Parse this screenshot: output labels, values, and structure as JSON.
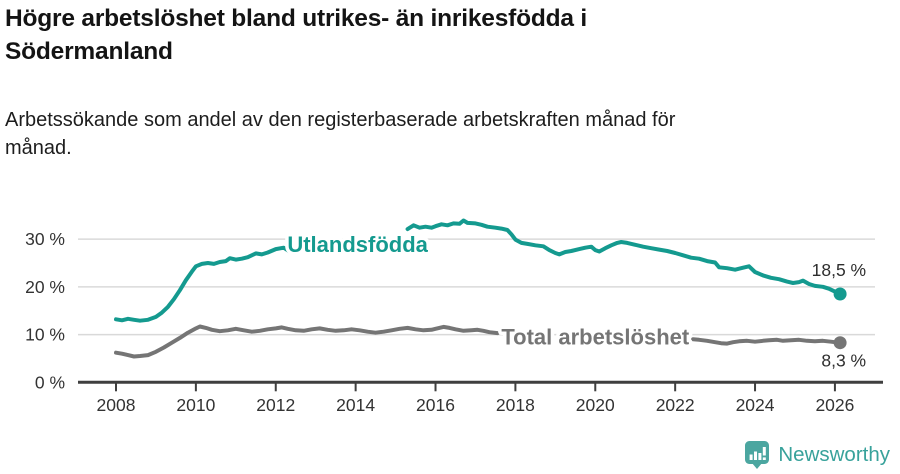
{
  "header": {
    "title": "Högre arbetslöshet bland utrikes- än inrikesfödda i\nSödermanland",
    "subtitle": "Arbetssökande som andel av den registerbaserade arbetskraften månad för\nmånad."
  },
  "footer": {
    "brand": "Newsworthy",
    "brand_color": "#38a29b",
    "logo_color": "#4ba6a0",
    "logo_icon": "newsworthy-pin-barchart-icon"
  },
  "chart_data": {
    "type": "line",
    "title": "Högre arbetslöshet bland utrikes- än inrikesfödda i Södermanland",
    "ylabel": "",
    "xlabel": "",
    "grid": true,
    "legend_position": "inline-labels",
    "colors": {
      "axis": "#3f3f3f",
      "grid": "#d9d9d9",
      "tick_text": "#333333"
    },
    "x_axis": {
      "ticks": [
        2008,
        2010,
        2012,
        2014,
        2016,
        2018,
        2020,
        2022,
        2024,
        2026
      ],
      "range": [
        2007.05,
        2027.2
      ]
    },
    "y_axis": {
      "ticks": [
        {
          "value": 0,
          "label": "0 %"
        },
        {
          "value": 10,
          "label": "10 %"
        },
        {
          "value": 20,
          "label": "20 %"
        },
        {
          "value": 30,
          "label": "30 %"
        }
      ],
      "range": [
        0,
        36
      ]
    },
    "series": [
      {
        "name": "Utlandsfödda",
        "label": "Utlandsfödda",
        "color": "#149a8f",
        "label_anchor": [
          2014.05,
          28.8
        ],
        "end_label": "18,5 %",
        "end_label_position": "above",
        "end_value": 18.5,
        "segments": [
          [
            [
              2008.0,
              13.2
            ],
            [
              2008.15,
              13.0
            ],
            [
              2008.3,
              13.3
            ],
            [
              2008.45,
              13.1
            ],
            [
              2008.6,
              12.9
            ],
            [
              2008.8,
              13.1
            ],
            [
              2009.0,
              13.7
            ],
            [
              2009.15,
              14.6
            ],
            [
              2009.3,
              15.8
            ],
            [
              2009.45,
              17.4
            ],
            [
              2009.6,
              19.3
            ],
            [
              2009.75,
              21.4
            ],
            [
              2009.9,
              23.2
            ],
            [
              2010.0,
              24.3
            ],
            [
              2010.15,
              24.8
            ],
            [
              2010.3,
              25.0
            ],
            [
              2010.45,
              24.8
            ],
            [
              2010.6,
              25.2
            ],
            [
              2010.75,
              25.4
            ],
            [
              2010.85,
              26.0
            ],
            [
              2011.0,
              25.7
            ],
            [
              2011.15,
              25.9
            ],
            [
              2011.3,
              26.2
            ],
            [
              2011.5,
              27.0
            ],
            [
              2011.65,
              26.8
            ],
            [
              2011.8,
              27.2
            ],
            [
              2012.0,
              27.9
            ],
            [
              2012.2,
              28.2
            ],
            [
              2012.35,
              27.4
            ]
          ],
          [
            [
              2015.3,
              32.1
            ],
            [
              2015.45,
              32.9
            ],
            [
              2015.6,
              32.4
            ],
            [
              2015.75,
              32.6
            ],
            [
              2015.9,
              32.4
            ],
            [
              2016.0,
              32.7
            ],
            [
              2016.15,
              33.1
            ],
            [
              2016.3,
              32.9
            ],
            [
              2016.45,
              33.3
            ],
            [
              2016.6,
              33.2
            ],
            [
              2016.7,
              33.9
            ],
            [
              2016.8,
              33.4
            ],
            [
              2017.0,
              33.3
            ],
            [
              2017.15,
              33.0
            ],
            [
              2017.3,
              32.6
            ],
            [
              2017.5,
              32.4
            ],
            [
              2017.65,
              32.2
            ],
            [
              2017.8,
              31.9
            ],
            [
              2017.9,
              31.0
            ],
            [
              2018.0,
              29.9
            ],
            [
              2018.15,
              29.2
            ],
            [
              2018.3,
              29.0
            ],
            [
              2018.5,
              28.7
            ],
            [
              2018.7,
              28.5
            ],
            [
              2018.85,
              27.7
            ],
            [
              2019.0,
              27.1
            ],
            [
              2019.1,
              26.8
            ],
            [
              2019.25,
              27.3
            ],
            [
              2019.4,
              27.5
            ],
            [
              2019.6,
              27.9
            ],
            [
              2019.75,
              28.2
            ],
            [
              2019.9,
              28.4
            ],
            [
              2020.0,
              27.7
            ],
            [
              2020.1,
              27.4
            ],
            [
              2020.25,
              28.1
            ],
            [
              2020.4,
              28.7
            ],
            [
              2020.55,
              29.2
            ],
            [
              2020.65,
              29.4
            ],
            [
              2020.8,
              29.2
            ],
            [
              2021.0,
              28.8
            ],
            [
              2021.2,
              28.4
            ],
            [
              2021.4,
              28.1
            ],
            [
              2021.6,
              27.8
            ],
            [
              2021.8,
              27.5
            ],
            [
              2022.0,
              27.1
            ],
            [
              2022.2,
              26.6
            ],
            [
              2022.4,
              26.1
            ],
            [
              2022.6,
              25.9
            ],
            [
              2022.8,
              25.4
            ],
            [
              2023.0,
              25.1
            ],
            [
              2023.1,
              24.1
            ],
            [
              2023.3,
              23.9
            ],
            [
              2023.5,
              23.6
            ],
            [
              2023.7,
              24.0
            ],
            [
              2023.85,
              24.3
            ],
            [
              2024.0,
              23.1
            ],
            [
              2024.2,
              22.4
            ],
            [
              2024.4,
              21.9
            ],
            [
              2024.6,
              21.6
            ],
            [
              2024.8,
              21.1
            ],
            [
              2024.95,
              20.8
            ],
            [
              2025.1,
              21.0
            ],
            [
              2025.2,
              21.3
            ],
            [
              2025.35,
              20.6
            ],
            [
              2025.5,
              20.2
            ],
            [
              2025.7,
              20.0
            ],
            [
              2025.85,
              19.6
            ],
            [
              2026.0,
              19.0
            ],
            [
              2026.13,
              18.5
            ]
          ]
        ]
      },
      {
        "name": "Total arbetslöshet",
        "label": "Total arbetslöshet",
        "color": "#757575",
        "label_anchor": [
          2020.0,
          9.35
        ],
        "end_label": "8,3 %",
        "end_label_position": "below",
        "end_value": 8.3,
        "segments": [
          [
            [
              2008.0,
              6.2
            ],
            [
              2008.15,
              6.0
            ],
            [
              2008.3,
              5.7
            ],
            [
              2008.45,
              5.4
            ],
            [
              2008.6,
              5.5
            ],
            [
              2008.8,
              5.7
            ],
            [
              2009.0,
              6.4
            ],
            [
              2009.2,
              7.3
            ],
            [
              2009.4,
              8.3
            ],
            [
              2009.6,
              9.3
            ],
            [
              2009.8,
              10.4
            ],
            [
              2010.0,
              11.3
            ],
            [
              2010.1,
              11.7
            ],
            [
              2010.25,
              11.4
            ],
            [
              2010.4,
              11.0
            ],
            [
              2010.6,
              10.7
            ],
            [
              2010.8,
              10.9
            ],
            [
              2011.0,
              11.2
            ],
            [
              2011.2,
              10.9
            ],
            [
              2011.4,
              10.6
            ],
            [
              2011.6,
              10.8
            ],
            [
              2011.8,
              11.1
            ],
            [
              2012.0,
              11.3
            ],
            [
              2012.15,
              11.5
            ],
            [
              2012.3,
              11.2
            ],
            [
              2012.5,
              10.9
            ],
            [
              2012.7,
              10.8
            ],
            [
              2012.9,
              11.1
            ],
            [
              2013.1,
              11.3
            ],
            [
              2013.3,
              11.0
            ],
            [
              2013.5,
              10.8
            ],
            [
              2013.7,
              10.9
            ],
            [
              2013.9,
              11.1
            ],
            [
              2014.1,
              10.9
            ],
            [
              2014.3,
              10.6
            ],
            [
              2014.5,
              10.4
            ],
            [
              2014.7,
              10.6
            ],
            [
              2014.9,
              10.9
            ],
            [
              2015.1,
              11.2
            ],
            [
              2015.3,
              11.4
            ],
            [
              2015.5,
              11.1
            ],
            [
              2015.7,
              10.9
            ],
            [
              2015.9,
              11.0
            ],
            [
              2016.0,
              11.2
            ],
            [
              2016.2,
              11.6
            ],
            [
              2016.35,
              11.4
            ],
            [
              2016.5,
              11.1
            ],
            [
              2016.7,
              10.8
            ],
            [
              2016.9,
              10.9
            ],
            [
              2017.05,
              11.0
            ],
            [
              2017.2,
              10.8
            ],
            [
              2017.35,
              10.5
            ],
            [
              2017.55,
              10.3
            ]
          ],
          [
            [
              2022.45,
              9.0
            ],
            [
              2022.6,
              8.9
            ],
            [
              2022.8,
              8.7
            ],
            [
              2023.0,
              8.4
            ],
            [
              2023.15,
              8.2
            ],
            [
              2023.3,
              8.1
            ],
            [
              2023.45,
              8.4
            ],
            [
              2023.6,
              8.6
            ],
            [
              2023.8,
              8.7
            ],
            [
              2024.0,
              8.5
            ],
            [
              2024.2,
              8.7
            ],
            [
              2024.35,
              8.8
            ],
            [
              2024.55,
              8.9
            ],
            [
              2024.7,
              8.7
            ],
            [
              2024.9,
              8.8
            ],
            [
              2025.1,
              8.9
            ],
            [
              2025.3,
              8.7
            ],
            [
              2025.5,
              8.6
            ],
            [
              2025.7,
              8.7
            ],
            [
              2025.9,
              8.5
            ],
            [
              2026.0,
              8.4
            ],
            [
              2026.13,
              8.3
            ]
          ]
        ]
      }
    ]
  }
}
